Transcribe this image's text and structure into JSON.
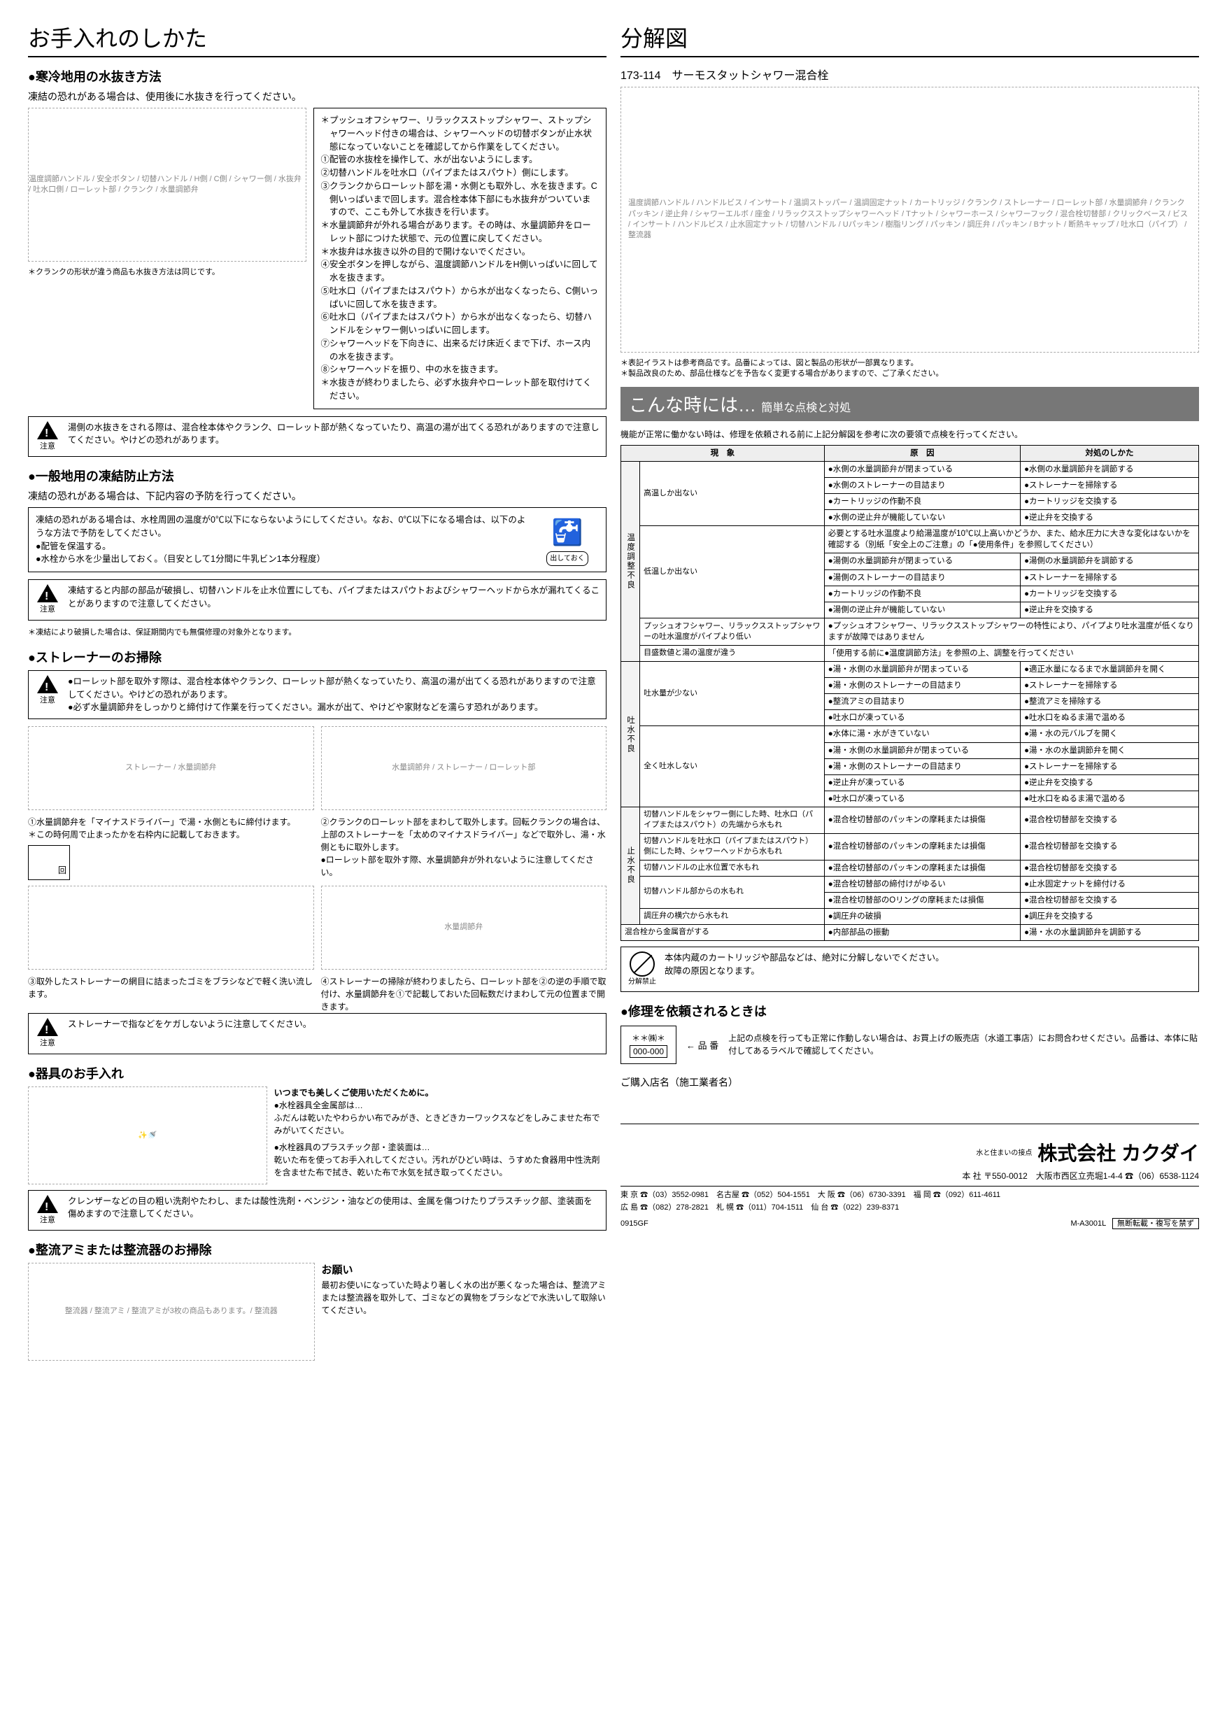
{
  "left": {
    "title": "お手入れのしかた",
    "sec1": {
      "heading": "寒冷地用の水抜き方法",
      "lead": "凍結の恐れがある場合は、使用後に水抜きを行ってください。",
      "diagram_labels": "温度調節ハンドル / 安全ボタン / 切替ハンドル / H側 / C側 / シャワー側 / 水抜弁 / 吐水口側 / ローレット部 / クランク / 水量調節弁",
      "diagram_note": "＊クランクの形状が違う商品も水抜き方法は同じです。",
      "steps": [
        "＊プッシュオフシャワー、リラックスストップシャワー、ストップシャワーヘッド付きの場合は、シャワーヘッドの切替ボタンが止水状態になっていないことを確認してから作業をしてください。",
        "①配管の水抜栓を操作して、水が出ないようにします。",
        "②切替ハンドルを吐水口（パイプまたはスパウト）側にします。",
        "③クランクからローレット部を湯・水側とも取外し、水を抜きます。C側いっぱいまで回します。混合栓本体下部にも水抜弁がついていますので、ここも外して水抜きを行います。",
        "＊水量調節弁が外れる場合があります。その時は、水量調節弁をローレット部につけた状態で、元の位置に戻してください。",
        "＊水抜弁は水抜き以外の目的で開けないでください。",
        "④安全ボタンを押しながら、温度調節ハンドルをH側いっぱいに回して水を抜きます。",
        "⑤吐水口（パイプまたはスパウト）から水が出なくなったら、C側いっぱいに回して水を抜きます。",
        "⑥吐水口（パイプまたはスパウト）から水が出なくなったら、切替ハンドルをシャワー側いっぱいに回します。",
        "⑦シャワーヘッドを下向きに、出来るだけ床近くまで下げ、ホース内の水を抜きます。",
        "⑧シャワーヘッドを振り、中の水を抜きます。",
        "＊水抜きが終わりましたら、必ず水抜弁やローレット部を取付けてください。"
      ],
      "caution": "湯側の水抜きをされる際は、混合栓本体やクランク、ローレット部が熱くなっていたり、高温の湯が出てくる恐れがありますので注意してください。やけどの恐れがあります。"
    },
    "sec2": {
      "heading": "一般地用の凍結防止方法",
      "lead": "凍結の恐れがある場合は、下記内容の予防を行ってください。",
      "body1": "凍結の恐れがある場合は、水栓周囲の温度が0℃以下にならないようにしてください。なお、0℃以下になる場合は、以下のような方法で予防をしてください。",
      "bullets": [
        "●配管を保温する。",
        "●水栓から水を少量出しておく。（目安として1分間に牛乳ビン1本分程度）"
      ],
      "caution": "凍結すると内部の部品が破損し、切替ハンドルを止水位置にしても、パイプまたはスパウトおよびシャワーヘッドから水が漏れてくることがありますので注意してください。",
      "note": "＊凍結により破損した場合は、保証期間内でも無償修理の対象外となります。",
      "hint_label": "出しておく"
    },
    "sec3": {
      "heading": "ストレーナーのお掃除",
      "caution": "●ローレット部を取外す際は、混合栓本体やクランク、ローレット部が熱くなっていたり、高温の湯が出てくる恐れがありますので注意してください。やけどの恐れがあります。\n●必ず水量調節弁をしっかりと締付けて作業を行ってください。漏水が出て、やけどや家財などを濡らす恐れがあります。",
      "labels1": "ストレーナー / 水量調節弁",
      "labels2": "水量調節弁 / ストレーナー / ローレット部",
      "step1": "①水量調節弁を「マイナスドライバー」で湯・水側ともに締付けます。\n＊この時何周で止まったかを右枠内に記載しておきます。",
      "rot_label": "回",
      "step2": "②クランクのローレット部をまわして取外します。回転クランクの場合は、上部のストレーナーを「太めのマイナスドライバー」などで取外し、湯・水側ともに取外します。\n●ローレット部を取外す際、水量調節弁が外れないように注意してください。",
      "step3": "③取外したストレーナーの網目に詰まったゴミをブラシなどで軽く洗い流します。",
      "step4": "④ストレーナーの掃除が終わりましたら、ローレット部を②の逆の手順で取付け、水量調節弁を①で記載しておいた回転数だけまわして元の位置まで開きます。",
      "labels3": "水量調節弁",
      "caution2": "ストレーナーで指などをケガしないように注意してください。"
    },
    "sec4": {
      "heading": "器具のお手入れ",
      "lead": "いつまでも美しくご使用いただくために。",
      "b1_head": "●水栓器具全金属部は…",
      "b1_body": "ふだんは乾いたやわらかい布でみがき、ときどきカーワックスなどをしみこませた布でみがいてください。",
      "b2_head": "●水栓器具のプラスチック部・塗装面は…",
      "b2_body": "乾いた布を使ってお手入れしてください。汚れがひどい時は、うすめた食器用中性洗剤を含ませた布で拭き、乾いた布で水気を拭き取ってください。",
      "caution": "クレンザーなどの目の粗い洗剤やたわし、または酸性洗剤・ベンジン・油などの使用は、金属を傷つけたりプラスチック部、塗装面を傷めますので注意してください。"
    },
    "sec5": {
      "heading": "整流アミまたは整流器のお掃除",
      "labels": "整流器 / 整流アミ / 整流アミが3枚の商品もあります。/ 整流器",
      "onegai_head": "お願い",
      "onegai_body": "最初お使いになっていた時より著しく水の出が悪くなった場合は、整流アミまたは整流器を取外して、ゴミなどの異物をブラシなどで水洗いして取除いてください。"
    }
  },
  "right": {
    "title": "分解図",
    "product": "173-114　サーモスタットシャワー混合栓",
    "diagram_labels": "温度調節ハンドル / ハンドルビス / インサート / 温調ストッパー / 温調固定ナット / カートリッジ / クランク / ストレーナー / ローレット部 / 水量調節弁 / クランクパッキン / 逆止弁 / シャワーエルボ / 座金 / リラックスストップシャワーヘッド / Tナット / シャワーホース / シャワーフック / 混合栓切替部 / クリックベース / ビス / インサート / ハンドルビス / 止水固定ナット / 切替ハンドル / Uパッキン / 樹脂リング / パッキン / 調圧弁 / パッキン / Bナット / 断熱キャップ / 吐水口（パイプ） / 整流器",
    "notes": [
      "＊表記イラストは参考商品です。品番によっては、図と製品の形状が一部異なります。",
      "＊製品改良のため、部品仕様などを予告なく変更する場合がありますので、ご了承ください。"
    ],
    "banner_main": "こんな時には…",
    "banner_sub": "簡単な点検と対処",
    "banner_lead": "機能が正常に働かない時は、修理を依頼される前に上記分解図を参考に次の要領で点検を行ってください。",
    "table": {
      "head": [
        "現　象",
        "原　因",
        "対処のしかた"
      ],
      "cat1": "温度調整不良",
      "r1_sym": "高温しか出ない",
      "r1": [
        [
          "●水側の水量調節弁が閉まっている",
          "●水側の水量調節弁を調節する"
        ],
        [
          "●水側のストレーナーの目詰まり",
          "●ストレーナーを掃除する"
        ],
        [
          "●カートリッジの作動不良",
          "●カートリッジを交換する"
        ],
        [
          "●水側の逆止弁が機能していない",
          "●逆止弁を交換する"
        ]
      ],
      "r2_sym": "低温しか出ない",
      "r2_note": "必要とする吐水温度より給湯温度が10℃以上高いかどうか、また、給水圧力に大きな変化はないかを確認する（別紙「安全上のご注意」の「●使用条件」を参照してください）",
      "r2": [
        [
          "●湯側の水量調節弁が閉まっている",
          "●湯側の水量調節弁を調節する"
        ],
        [
          "●湯側のストレーナーの目詰まり",
          "●ストレーナーを掃除する"
        ],
        [
          "●カートリッジの作動不良",
          "●カートリッジを交換する"
        ],
        [
          "●湯側の逆止弁が機能していない",
          "●逆止弁を交換する"
        ]
      ],
      "r3_sym": "プッシュオフシャワー、リラックスストップシャワーの吐水温度がパイプより低い",
      "r3_cause": "●プッシュオフシャワー、リラックスストップシャワーの特性により、パイプより吐水温度が低くなりますが故障ではありません",
      "r4_sym": "目盛数値と湯の温度が違う",
      "r4_cause_pre": "「",
      "r4_cause_hi": "使用する前に",
      "r4_cause_post": "●温度調節方法」を参照の上、調整を行ってください",
      "cat2": "吐水不良",
      "r5_sym": "吐水量が少ない",
      "r5": [
        [
          "●湯・水側の水量調節弁が閉まっている",
          "●適正水量になるまで水量調節弁を開く"
        ],
        [
          "●湯・水側のストレーナーの目詰まり",
          "●ストレーナーを掃除する"
        ],
        [
          "●整流アミの目詰まり",
          "●整流アミを掃除する"
        ],
        [
          "●吐水口が凍っている",
          "●吐水口をぬるま湯で温める"
        ]
      ],
      "r6_sym": "全く吐水しない",
      "r6": [
        [
          "●水体に湯・水がきていない",
          "●湯・水の元バルブを開く"
        ],
        [
          "●湯・水側の水量調節弁が閉まっている",
          "●湯・水の水量調節弁を開く"
        ],
        [
          "●湯・水側のストレーナーの目詰まり",
          "●ストレーナーを掃除する"
        ],
        [
          "●逆止弁が凍っている",
          "●逆止弁を交換する"
        ],
        [
          "●吐水口が凍っている",
          "●吐水口をぬるま湯で温める"
        ]
      ],
      "cat3": "止水不良",
      "r7_sym": "切替ハンドルをシャワー側にした時、吐水口（パイプまたはスパウト）の先端から水もれ",
      "r7": [
        [
          "●混合栓切替部のパッキンの摩耗または損傷",
          "●混合栓切替部を交換する"
        ]
      ],
      "r8_sym": "切替ハンドルを吐水口（パイプまたはスパウト）側にした時、シャワーヘッドから水もれ",
      "r8": [
        [
          "●混合栓切替部のパッキンの摩耗または損傷",
          "●混合栓切替部を交換する"
        ]
      ],
      "r9_sym": "切替ハンドルの止水位置で水もれ",
      "r9": [
        [
          "●混合栓切替部のパッキンの摩耗または損傷",
          "●混合栓切替部を交換する"
        ]
      ],
      "r10_sym": "切替ハンドル部からの水もれ",
      "r10": [
        [
          "●混合栓切替部の締付けがゆるい",
          "●止水固定ナットを締付ける"
        ],
        [
          "●混合栓切替部のOリングの摩耗または損傷",
          "●混合栓切替部を交換する"
        ]
      ],
      "r11_sym": "調圧弁の横穴から水もれ",
      "r11": [
        [
          "●調圧弁の破損",
          "●調圧弁を交換する"
        ]
      ],
      "r12_sym": "混合栓から金属音がする",
      "r12": [
        [
          "●内部部品の振動",
          "●湯・水の水量調節弁を調節する"
        ]
      ]
    },
    "prohibit_text": "本体内蔵のカートリッジや部品などは、絶対に分解しないでください。\n故障の原因となります。",
    "prohibit_label": "分解禁止",
    "repair_heading": "修理を依頼されるときは",
    "repair_text": "上記の点検を行っても正常に作動しない場合は、お買上げの販売店（水道工事店）にお問合わせください。品番は、本体に貼付してあるラベルで確認してください。",
    "label_sample1": "＊＊㈱＊",
    "label_sample2": "000-000",
    "label_arrow": "← 品 番",
    "dealer_heading": "ご購入店名（施工業者名）",
    "company": {
      "tagline": "水と住まいの接点",
      "name": "株式会社 カクダイ",
      "hq": "本 社 〒550-0012　大阪市西区立売堀1-4-4 ☎（06）6538-1124",
      "branches": "東 京 ☎（03）3552-0981　名古屋 ☎（052）504-1551　大 阪 ☎（06）6730-3391　福 岡 ☎（092）611-4611\n広 島 ☎（082）278-2821　札 幌 ☎（011）704-1511　仙 台 ☎（022）239-8371"
    },
    "footer_code1": "0915GF",
    "footer_code2": "M-A3001L",
    "footer_right": "無断転載・複写を禁ず"
  }
}
